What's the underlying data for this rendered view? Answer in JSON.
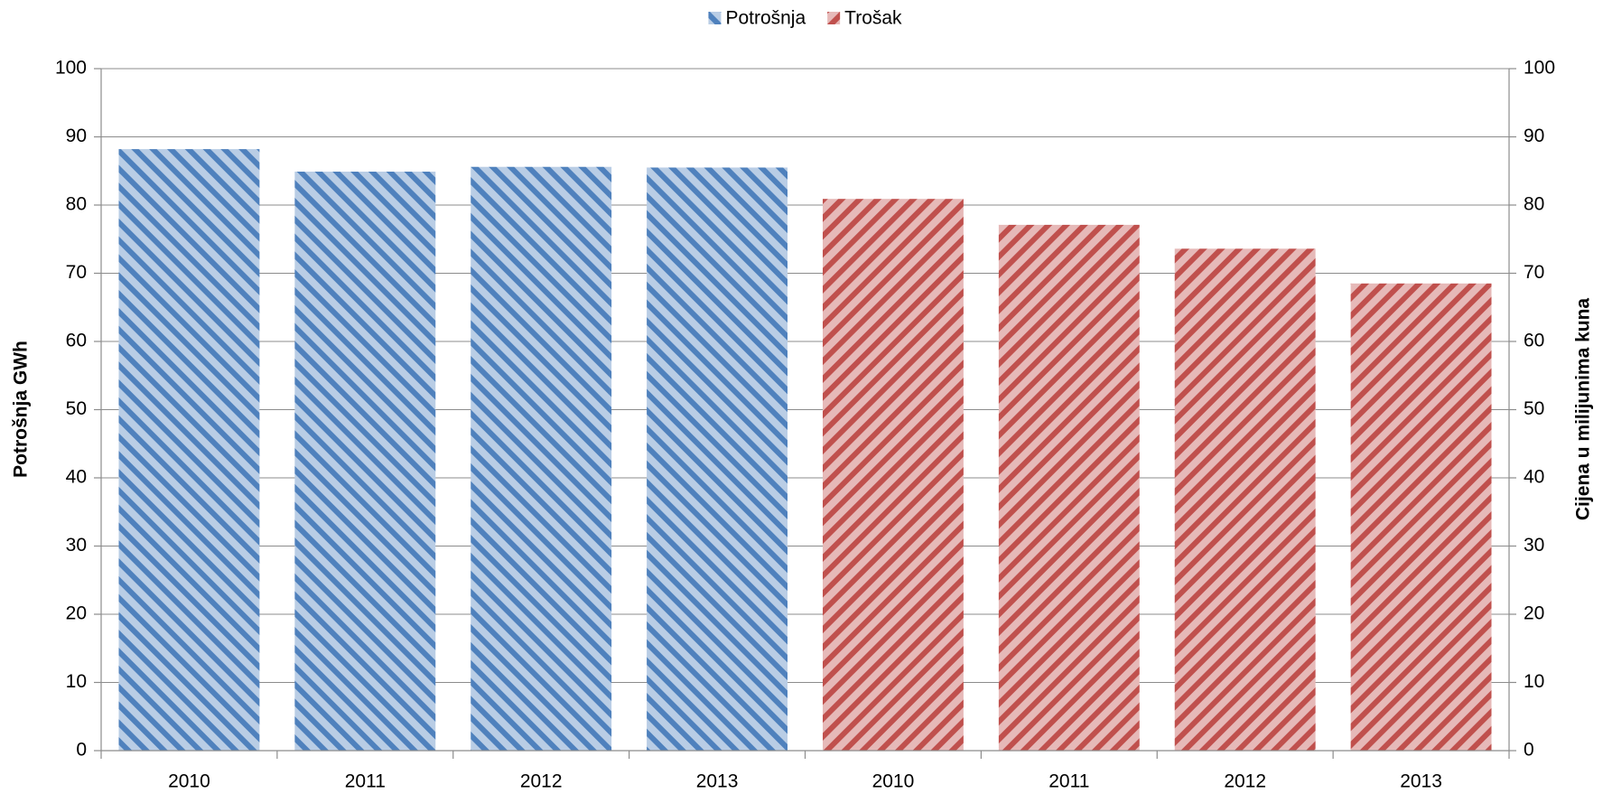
{
  "chart_data": {
    "type": "bar",
    "categories": [
      "2010",
      "2011",
      "2012",
      "2013",
      "2010",
      "2011",
      "2012",
      "2013"
    ],
    "series": [
      {
        "name": "Potrošnja",
        "color": "#4f81bd",
        "values": [
          88.2,
          84.9,
          85.6,
          85.5,
          null,
          null,
          null,
          null
        ],
        "axis": "y"
      },
      {
        "name": "Trošak",
        "color": "#c0504d",
        "values": [
          null,
          null,
          null,
          null,
          80.9,
          77.1,
          73.6,
          68.5
        ],
        "axis": "y2"
      }
    ],
    "ylabel": "Potrošnja GWh",
    "y2label": "Cijena u milijunima kuna",
    "ylim": [
      0,
      100
    ],
    "yticks": [
      0,
      10,
      20,
      30,
      40,
      50,
      60,
      70,
      80,
      90,
      100
    ],
    "y2lim": [
      0,
      100
    ],
    "y2ticks": [
      0,
      10,
      20,
      30,
      40,
      50,
      60,
      70,
      80,
      90,
      100
    ],
    "grid": true,
    "legend": "top"
  }
}
